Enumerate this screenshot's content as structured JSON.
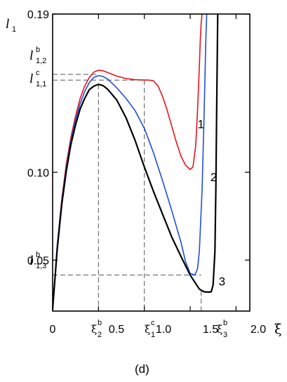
{
  "chart_data": {
    "type": "line",
    "panel_label": "(d)",
    "xlabel": "ξ",
    "ylabel": "l",
    "ylabel_sub": "1",
    "xlim": [
      0,
      2.15
    ],
    "ylim": [
      0.021,
      0.19
    ],
    "x_ticks": [
      {
        "value": 0,
        "label": "0"
      },
      {
        "value": 0.5,
        "label": "0.5"
      },
      {
        "value": 1.0,
        "label": "1.0"
      },
      {
        "value": 1.5,
        "label": "1.5"
      },
      {
        "value": 2.0,
        "label": "2.0"
      }
    ],
    "y_ticks": [
      {
        "value": 0.05,
        "label": "0.05"
      },
      {
        "value": 0.1,
        "label": "0.10"
      },
      {
        "value": 0.19,
        "label": "0.19"
      }
    ],
    "series": [
      {
        "name": "1",
        "color": "#e8141c",
        "x": [
          0,
          0.05,
          0.1,
          0.15,
          0.2,
          0.25,
          0.3,
          0.35,
          0.4,
          0.45,
          0.5,
          0.55,
          0.6,
          0.7,
          0.8,
          0.9,
          1.0,
          1.05,
          1.1,
          1.15,
          1.2,
          1.25,
          1.3,
          1.35,
          1.4,
          1.45,
          1.5,
          1.53,
          1.56,
          1.58,
          1.6,
          1.61,
          1.62,
          1.63
        ],
        "y": [
          0.022,
          0.058,
          0.085,
          0.105,
          0.12,
          0.132,
          0.142,
          0.149,
          0.154,
          0.157,
          0.158,
          0.1577,
          0.1567,
          0.1547,
          0.1533,
          0.1527,
          0.1525,
          0.1524,
          0.152,
          0.149,
          0.143,
          0.135,
          0.126,
          0.117,
          0.109,
          0.104,
          0.1015,
          0.103,
          0.115,
          0.135,
          0.16,
          0.175,
          0.185,
          0.19
        ]
      },
      {
        "name": "2",
        "color": "#1f4fd6",
        "x": [
          0,
          0.05,
          0.1,
          0.15,
          0.2,
          0.25,
          0.3,
          0.35,
          0.4,
          0.45,
          0.5,
          0.55,
          0.6,
          0.7,
          0.8,
          0.9,
          1.0,
          1.1,
          1.2,
          1.3,
          1.4,
          1.45,
          1.5,
          1.55,
          1.58,
          1.6,
          1.63,
          1.65,
          1.67,
          1.68
        ],
        "y": [
          0.022,
          0.058,
          0.084,
          0.103,
          0.118,
          0.13,
          0.139,
          0.146,
          0.151,
          0.154,
          0.155,
          0.1545,
          0.153,
          0.148,
          0.142,
          0.135,
          0.125,
          0.111,
          0.095,
          0.078,
          0.06,
          0.049,
          0.0425,
          0.0415,
          0.045,
          0.055,
          0.09,
          0.13,
          0.175,
          0.19
        ]
      },
      {
        "name": "3",
        "color": "#000000",
        "x": [
          0,
          0.05,
          0.1,
          0.15,
          0.2,
          0.25,
          0.3,
          0.35,
          0.4,
          0.45,
          0.5,
          0.55,
          0.6,
          0.7,
          0.8,
          0.9,
          1.0,
          1.1,
          1.2,
          1.3,
          1.4,
          1.5,
          1.6,
          1.65,
          1.7,
          1.73,
          1.75,
          1.77,
          1.78,
          1.79,
          1.8
        ],
        "y": [
          0.022,
          0.056,
          0.082,
          0.101,
          0.116,
          0.127,
          0.136,
          0.142,
          0.147,
          0.149,
          0.15,
          0.1493,
          0.1472,
          0.141,
          0.131,
          0.118,
          0.103,
          0.089,
          0.076,
          0.063,
          0.052,
          0.0415,
          0.0335,
          0.032,
          0.0318,
          0.032,
          0.036,
          0.055,
          0.09,
          0.14,
          0.19
        ]
      }
    ],
    "guides": {
      "y_l12b": 0.1557,
      "y_l11c": 0.1524,
      "y_l13b": 0.0415,
      "x_xi2b": 0.5,
      "x_xi1c": 1.0,
      "x_xi3b": 1.62
    },
    "annotations": {
      "y_marks": [
        {
          "value": 0.1557,
          "main": "l",
          "sub": "1,2",
          "sup": "b"
        },
        {
          "value": 0.1524,
          "main": "l",
          "sub": "1,1",
          "sup": "c"
        },
        {
          "value": 0.0415,
          "main": "l",
          "sub": "1,3",
          "sup": "b"
        }
      ],
      "x_marks": [
        {
          "value": 0.5,
          "main": "ξ",
          "sub": "2",
          "sup": "b"
        },
        {
          "value": 1.0,
          "main": "ξ",
          "sub": "1",
          "sup": "c"
        },
        {
          "value": 1.62,
          "main": "ξ",
          "sub": "3",
          "sup": "b"
        }
      ],
      "curve_labels": [
        {
          "text": "1",
          "x": 1.58,
          "y": 0.125
        },
        {
          "text": "2",
          "x": 1.72,
          "y": 0.095
        },
        {
          "text": "3",
          "x": 1.81,
          "y": 0.0355
        }
      ]
    }
  }
}
